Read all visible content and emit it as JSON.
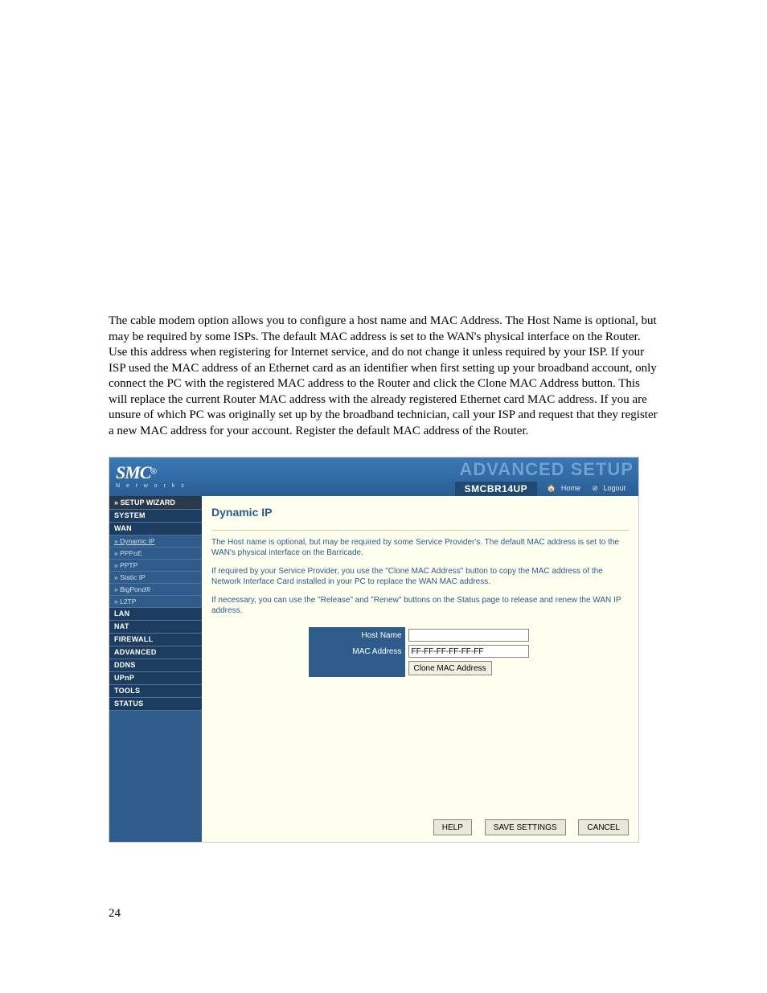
{
  "intro": "The cable modem option allows you to configure a host name and MAC Address. The Host Name is optional, but may be required by some ISPs. The default MAC address is set to the WAN's physical interface on the Router. Use this address when registering for Internet service, and do not change it unless required by your ISP. If your ISP used the MAC address of an Ethernet card as an identifier when first setting up your broadband account, only connect the PC with the registered MAC address to the Router and click the Clone MAC Address button. This will replace the current Router MAC address with the already registered Ethernet card MAC address. If you are unsure of which PC was originally set up by the broadband technician, call your ISP and request that they register a new MAC address for your account. Register the default MAC address of the Router.",
  "logo": {
    "main": "SMC",
    "reg": "®",
    "sub": "N e t w o r k s"
  },
  "banner_title": "ADVANCED SETUP",
  "model": "SMCBR14UP",
  "banner_links": {
    "home": "Home",
    "logout": "Logout"
  },
  "sidebar": {
    "wizard": "» SETUP WIZARD",
    "items": [
      {
        "label": "SYSTEM",
        "sub": []
      },
      {
        "label": "WAN",
        "sub": [
          {
            "label": "» Dynamic IP",
            "selected": true
          },
          {
            "label": "» PPPoE"
          },
          {
            "label": "» PPTP"
          },
          {
            "label": "» Static IP"
          },
          {
            "label": "» BigPond®"
          },
          {
            "label": "» L2TP"
          }
        ]
      },
      {
        "label": "LAN",
        "sub": []
      },
      {
        "label": "NAT",
        "sub": []
      },
      {
        "label": "FIREWALL",
        "sub": []
      },
      {
        "label": "ADVANCED",
        "sub": []
      },
      {
        "label": "DDNS",
        "sub": []
      },
      {
        "label": "UPnP",
        "sub": []
      },
      {
        "label": "TOOLS",
        "sub": []
      },
      {
        "label": "STATUS",
        "sub": []
      }
    ]
  },
  "content": {
    "title": "Dynamic IP",
    "p1": "The Host name is optional, but may be required by some Service Provider's. The default MAC address is set to the WAN's physical interface on the Barricade.",
    "p2": "If required by your Service Provider, you use the \"Clone MAC Address\" button to copy the MAC address of the Network Interface Card installed in your PC to replace the WAN MAC address.",
    "p3": "If necessary, you can use the \"Release\" and \"Renew\" buttons on the Status page to release and renew the WAN IP address.",
    "form": {
      "host_label": "Host Name",
      "host_value": "",
      "mac_label": "MAC Address",
      "mac_value": "FF-FF-FF-FF-FF-FF",
      "clone_btn": "Clone MAC Address"
    }
  },
  "buttons": {
    "help": "HELP",
    "save": "SAVE SETTINGS",
    "cancel": "CANCEL"
  },
  "page_no": "24"
}
